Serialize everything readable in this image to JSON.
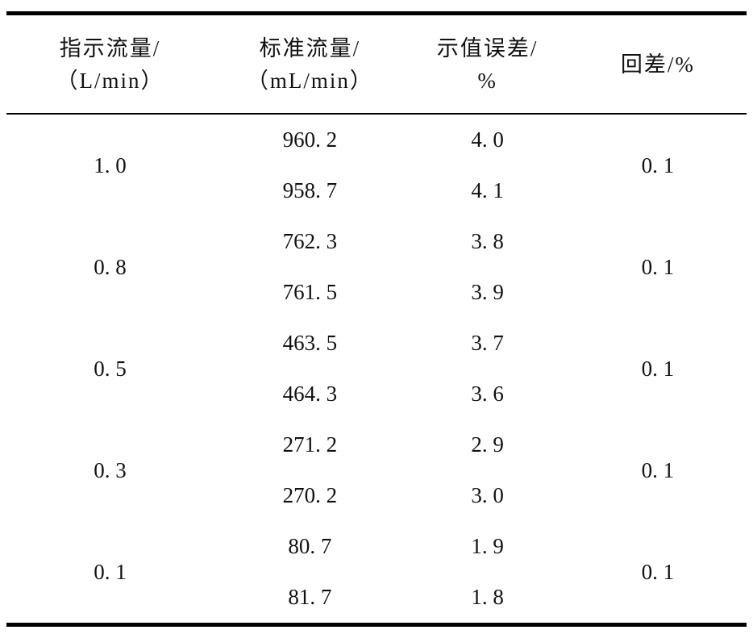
{
  "colors": {
    "background": "#ffffff",
    "text": "#111111",
    "rule_line": "#000000"
  },
  "table": {
    "headers": [
      {
        "line1": "指示流量/",
        "line2": "（L/min）"
      },
      {
        "line1": "标准流量/",
        "line2": "（mL/min）"
      },
      {
        "line1": "示值误差/",
        "line2": "%"
      },
      {
        "line1": "回差/%",
        "line2": ""
      }
    ],
    "groups": [
      {
        "indicated": "1. 0",
        "standard": [
          "960. 2",
          "958. 7"
        ],
        "error": [
          "4. 0",
          "4. 1"
        ],
        "hysteresis": "0. 1"
      },
      {
        "indicated": "0. 8",
        "standard": [
          "762. 3",
          "761. 5"
        ],
        "error": [
          "3. 8",
          "3. 9"
        ],
        "hysteresis": "0. 1"
      },
      {
        "indicated": "0. 5",
        "standard": [
          "463. 5",
          "464. 3"
        ],
        "error": [
          "3. 7",
          "3. 6"
        ],
        "hysteresis": "0. 1"
      },
      {
        "indicated": "0. 3",
        "standard": [
          "271. 2",
          "270. 2"
        ],
        "error": [
          "2. 9",
          "3. 0"
        ],
        "hysteresis": "0. 1"
      },
      {
        "indicated": "0. 1",
        "standard": [
          "80. 7",
          "81. 7"
        ],
        "error": [
          "1. 9",
          "1. 8"
        ],
        "hysteresis": "0. 1"
      }
    ]
  }
}
